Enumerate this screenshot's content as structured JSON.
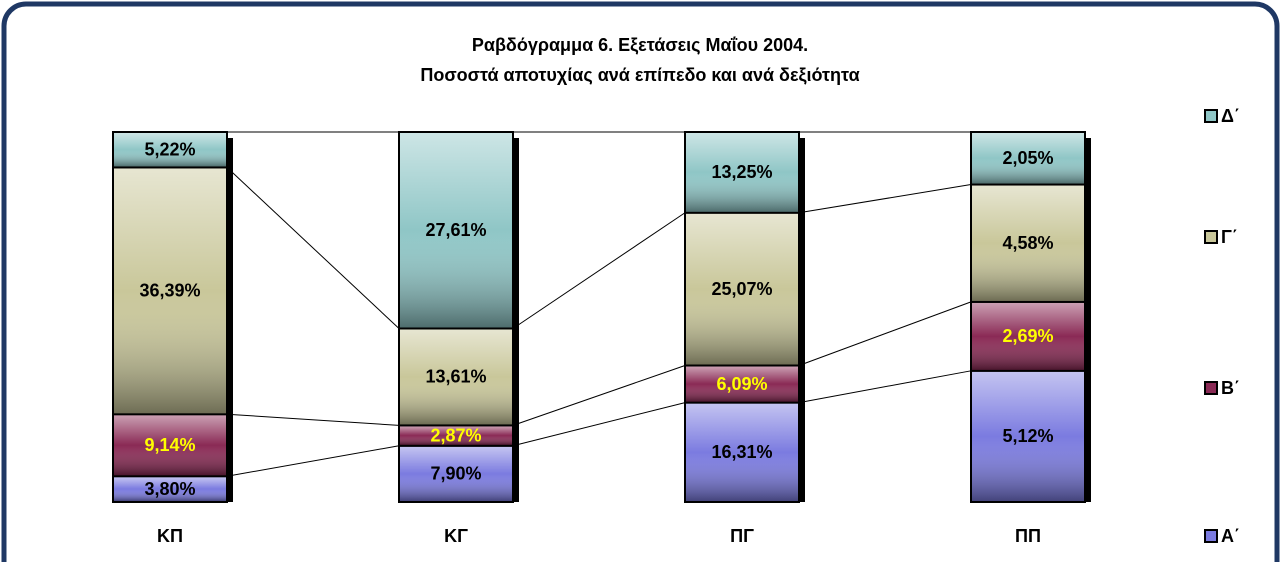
{
  "chart_data": {
    "type": "bar",
    "stacking": "percent",
    "title": "Ραβδόγραμμα 6. Εξετάσεις Μαΐου 2004.",
    "subtitle": "Ποσοστά αποτυχίας ανά επίπεδο και ανά δεξιότητα",
    "categories": [
      "ΚΠ",
      "ΚΓ",
      "ΠΓ",
      "ΠΠ"
    ],
    "series": [
      {
        "name": "Α΄",
        "color": "#7b7be0",
        "label_color": "#000000",
        "values": [
          3.8,
          7.9,
          16.31,
          5.12
        ],
        "value_labels": [
          "3,80%",
          "7,90%",
          "16,31%",
          "5,12%"
        ]
      },
      {
        "name": "Β΄",
        "color": "#8a2a55",
        "label_color": "#ffff00",
        "values": [
          9.14,
          2.87,
          6.09,
          2.69
        ],
        "value_labels": [
          "9,14%",
          "2,87%",
          "6,09%",
          "2,69%"
        ]
      },
      {
        "name": "Γ΄",
        "color": "#c9c79a",
        "label_color": "#000000",
        "values": [
          36.39,
          13.61,
          25.07,
          4.58
        ],
        "value_labels": [
          "36,39%",
          "13,61%",
          "25,07%",
          "4,58%"
        ]
      },
      {
        "name": "Δ΄",
        "color": "#8fc6c6",
        "label_color": "#000000",
        "values": [
          5.22,
          27.61,
          13.25,
          2.05
        ],
        "value_labels": [
          "5,22%",
          "27,61%",
          "13,25%",
          "2,05%"
        ]
      }
    ],
    "series_lines": true,
    "legend": "right"
  }
}
